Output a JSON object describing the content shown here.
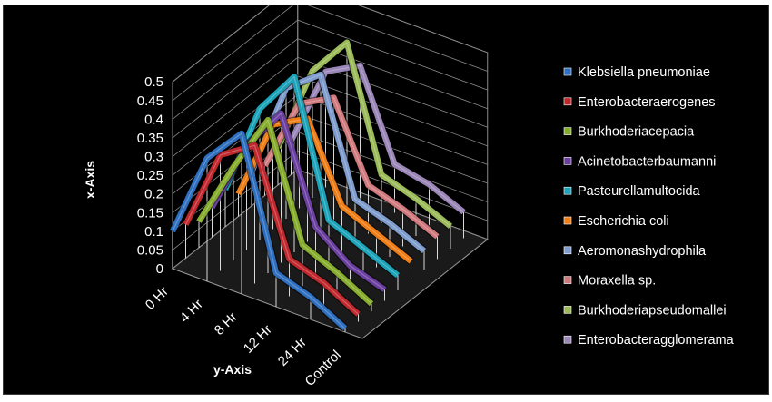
{
  "chart_data": {
    "type": "line",
    "view": "3d",
    "title": "",
    "xlabel": "y-Axis",
    "ylabel": "x-Axis",
    "ylim": [
      0,
      0.5
    ],
    "yticks": [
      "0",
      "0.05",
      "0.1",
      "0.15",
      "0.2",
      "0.25",
      "0.3",
      "0.35",
      "0.4",
      "0.45",
      "0.5"
    ],
    "categories": [
      "0 Hr",
      "4 Hr",
      "8 Hr",
      "12 Hr",
      "24 Hr",
      "Control"
    ],
    "grid": true,
    "legend_position": "right",
    "series": [
      {
        "name": "Klebsiella pneumoniae",
        "color": "#2e6fbf",
        "values": [
          0.1,
          0.33,
          0.43,
          0.09,
          0.06,
          0.01
        ]
      },
      {
        "name": "Enterobacteraerogenes",
        "color": "#c0282e",
        "values": [
          0.09,
          0.31,
          0.37,
          0.1,
          0.07,
          0.02
        ]
      },
      {
        "name": "Burkhoderiacepacia",
        "color": "#86ac2c",
        "values": [
          0.07,
          0.25,
          0.41,
          0.11,
          0.07,
          0.02
        ]
      },
      {
        "name": "Acinetobacterbaumanni",
        "color": "#6b3fa0",
        "values": [
          0.08,
          0.28,
          0.4,
          0.13,
          0.06,
          0.03
        ]
      },
      {
        "name": "Pasteurellamultocida",
        "color": "#1ba3b9",
        "values": [
          0.1,
          0.35,
          0.47,
          0.12,
          0.08,
          0.04
        ]
      },
      {
        "name": "Escherichia coli",
        "color": "#ef7d15",
        "values": [
          0.06,
          0.28,
          0.33,
          0.13,
          0.09,
          0.05
        ]
      },
      {
        "name": "Aeromonashydrophila",
        "color": "#7e9ccd",
        "values": [
          0.09,
          0.35,
          0.42,
          0.12,
          0.09,
          0.05
        ]
      },
      {
        "name": "Moraxella sp.",
        "color": "#d17a7e",
        "values": [
          0.08,
          0.28,
          0.33,
          0.13,
          0.1,
          0.06
        ]
      },
      {
        "name": "Burkhoderiapseudomallei",
        "color": "#9bbb59",
        "values": [
          0.1,
          0.34,
          0.45,
          0.13,
          0.1,
          0.06
        ]
      },
      {
        "name": "Enterobacteragglomerama",
        "color": "#9b86b8",
        "values": [
          0.09,
          0.31,
          0.36,
          0.13,
          0.11,
          0.07
        ]
      }
    ]
  }
}
